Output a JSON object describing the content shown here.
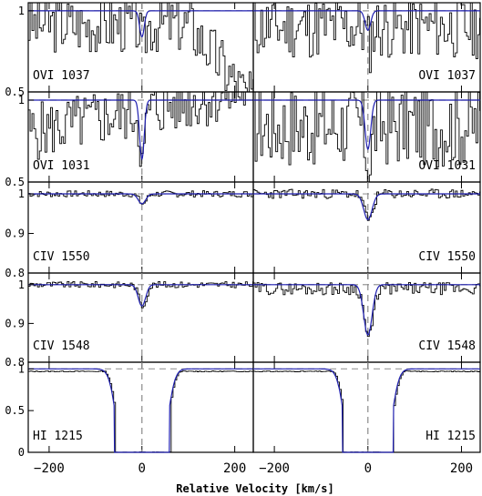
{
  "chart_data": {
    "type": "line",
    "xlabel": "Relative Velocity [km/s]",
    "ylabel": "",
    "xlim": [
      -245,
      240
    ],
    "x_ticks": [
      -200,
      0,
      200
    ],
    "columns": 2,
    "colors": {
      "spectrum": "#000000",
      "model": "#1f1fb0",
      "continuum": "#9a9a9a"
    },
    "panels": [
      {
        "label": "OVI  1037",
        "ylim": [
          0.5,
          1.05
        ],
        "yticks": [
          0.5,
          1
        ],
        "ytick_labels": [
          "0.5",
          "1"
        ],
        "series": [
          {
            "column": "left",
            "depth": 0.16,
            "width": 5,
            "noise": 0.18,
            "base": 0.92,
            "trend": "fall",
            "seed": 3
          },
          {
            "column": "right",
            "depth": 0.12,
            "width": 6,
            "noise": 0.2,
            "base": 0.9,
            "trend": "flat",
            "seed": 11
          }
        ]
      },
      {
        "label": "OVI  1031",
        "ylim": [
          0.5,
          1.05
        ],
        "yticks": [
          0.5,
          1
        ],
        "ytick_labels": [
          "0.5",
          "1"
        ],
        "series": [
          {
            "column": "left",
            "depth": 0.36,
            "width": 5,
            "noise": 0.18,
            "base": 0.8,
            "trend": "rise",
            "seed": 5
          },
          {
            "column": "right",
            "depth": 0.3,
            "width": 6,
            "noise": 0.26,
            "base": 0.85,
            "trend": "flat",
            "seed": 17
          }
        ]
      },
      {
        "label": "CIV  1550",
        "ylim": [
          0.8,
          1.03
        ],
        "yticks": [
          0.8,
          0.9,
          1
        ],
        "ytick_labels": [
          "0.8",
          "0.9",
          "1"
        ],
        "series": [
          {
            "column": "left",
            "depth": 0.025,
            "width": 8,
            "noise": 0.008,
            "base": 1.0,
            "trend": "flat",
            "seed": 7
          },
          {
            "column": "right",
            "depth": 0.065,
            "width": 9,
            "noise": 0.012,
            "base": 1.0,
            "trend": "flat",
            "seed": 23
          }
        ]
      },
      {
        "label": "CIV  1548",
        "ylim": [
          0.8,
          1.03
        ],
        "yticks": [
          0.8,
          0.9,
          1
        ],
        "ytick_labels": [
          "0.8",
          "0.9",
          "1"
        ],
        "series": [
          {
            "column": "left",
            "depth": 0.055,
            "width": 8,
            "noise": 0.008,
            "base": 1.0,
            "trend": "flat",
            "seed": 9
          },
          {
            "column": "right",
            "depth": 0.13,
            "width": 9,
            "noise": 0.016,
            "base": 0.99,
            "trend": "flat",
            "seed": 29
          }
        ]
      },
      {
        "label": "HI  1215",
        "ylim": [
          0,
          1.08
        ],
        "yticks": [
          0,
          0.5,
          1
        ],
        "ytick_labels": [
          "0",
          "0.5",
          "1"
        ],
        "series": [
          {
            "column": "left",
            "depth": 1.0,
            "width": 60,
            "noise": 0.01,
            "base": 0.97,
            "trend": "flat",
            "seed": 13,
            "saturated": true
          },
          {
            "column": "right",
            "depth": 1.0,
            "width": 55,
            "noise": 0.01,
            "base": 0.97,
            "trend": "flat",
            "seed": 31,
            "saturated": true
          }
        ]
      }
    ]
  }
}
